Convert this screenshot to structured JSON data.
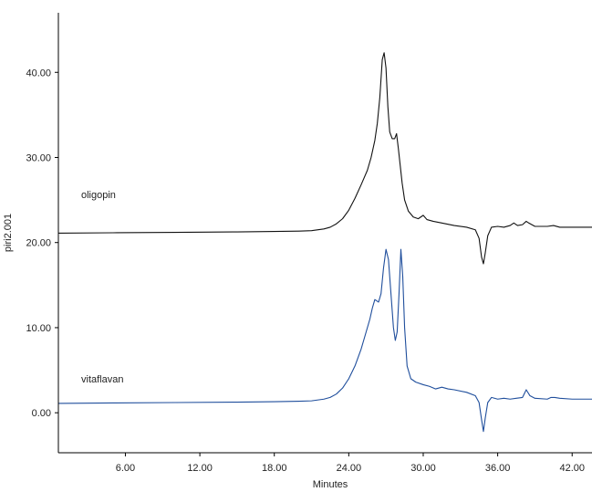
{
  "chart_data": {
    "type": "line",
    "title": "",
    "xlabel": "Minutes",
    "ylabel": "piri2.001",
    "xlim": [
      0.6,
      43.6
    ],
    "ylim": [
      -4.7,
      47
    ],
    "x_ticks": [
      "6.00",
      "12.00",
      "18.00",
      "24.00",
      "30.00",
      "36.00",
      "42.00"
    ],
    "y_ticks": [
      "0.00",
      "10.00",
      "20.00",
      "30.00",
      "40.00"
    ],
    "grid": false,
    "colors": {
      "oligopin": "#111111",
      "vitaflavan": "#1f4e9c"
    },
    "series": [
      {
        "name": "oligopin",
        "x": [
          0.6,
          5,
          10,
          15,
          18,
          20,
          21,
          22,
          22.5,
          23,
          23.5,
          24,
          24.5,
          25,
          25.5,
          25.8,
          26.1,
          26.3,
          26.5,
          26.7,
          26.85,
          27.0,
          27.15,
          27.3,
          27.5,
          27.7,
          27.85,
          28.0,
          28.15,
          28.3,
          28.5,
          28.8,
          29.2,
          29.6,
          30.0,
          30.3,
          30.8,
          31.5,
          32.5,
          33.5,
          34.2,
          34.5,
          34.7,
          34.85,
          35.0,
          35.2,
          35.5,
          36.0,
          36.5,
          37.0,
          37.3,
          37.6,
          38.0,
          38.3,
          38.5,
          39.0,
          40.0,
          40.5,
          41.0,
          42.0,
          43.6
        ],
        "y": [
          21.1,
          21.15,
          21.2,
          21.25,
          21.3,
          21.35,
          21.4,
          21.6,
          21.8,
          22.2,
          22.8,
          23.8,
          25.2,
          26.8,
          28.5,
          30,
          32,
          34,
          37,
          41.5,
          42.3,
          40.5,
          36,
          33,
          32.2,
          32.2,
          32.8,
          31,
          29,
          27,
          25,
          23.7,
          23.0,
          22.8,
          23.2,
          22.7,
          22.5,
          22.3,
          22.0,
          21.8,
          21.5,
          20.5,
          18.3,
          17.5,
          18.8,
          20.8,
          21.8,
          21.9,
          21.8,
          22.0,
          22.3,
          22.0,
          22.1,
          22.5,
          22.3,
          21.9,
          21.9,
          22.0,
          21.8,
          21.8,
          21.8
        ]
      },
      {
        "name": "vitaflavan",
        "x": [
          0.6,
          5,
          10,
          15,
          18,
          20,
          21,
          22,
          22.5,
          23,
          23.5,
          24,
          24.5,
          25,
          25.4,
          25.7,
          25.9,
          26.1,
          26.4,
          26.6,
          26.8,
          27.0,
          27.2,
          27.4,
          27.6,
          27.75,
          27.9,
          28.05,
          28.2,
          28.35,
          28.5,
          28.7,
          29.0,
          29.4,
          30.0,
          30.5,
          31.0,
          31.5,
          32.0,
          32.5,
          33.5,
          34.2,
          34.5,
          34.7,
          34.85,
          35.0,
          35.2,
          35.5,
          36.0,
          36.5,
          37.0,
          37.5,
          38.0,
          38.3,
          38.6,
          39.0,
          40.0,
          40.3,
          40.6,
          41.0,
          42.0,
          43.6
        ],
        "y": [
          1.1,
          1.15,
          1.2,
          1.25,
          1.3,
          1.35,
          1.4,
          1.6,
          1.8,
          2.2,
          2.9,
          4.0,
          5.5,
          7.5,
          9.5,
          11,
          12.3,
          13.3,
          13.0,
          14,
          17,
          19.2,
          18,
          14,
          10,
          8.5,
          9.5,
          14,
          19.2,
          16,
          10,
          5.5,
          4.0,
          3.6,
          3.3,
          3.1,
          2.8,
          3.0,
          2.8,
          2.7,
          2.4,
          2.0,
          1.2,
          -0.8,
          -2.2,
          -0.6,
          1.2,
          1.8,
          1.6,
          1.7,
          1.6,
          1.7,
          1.8,
          2.7,
          2.0,
          1.7,
          1.6,
          1.8,
          1.8,
          1.7,
          1.6,
          1.6
        ]
      }
    ]
  }
}
